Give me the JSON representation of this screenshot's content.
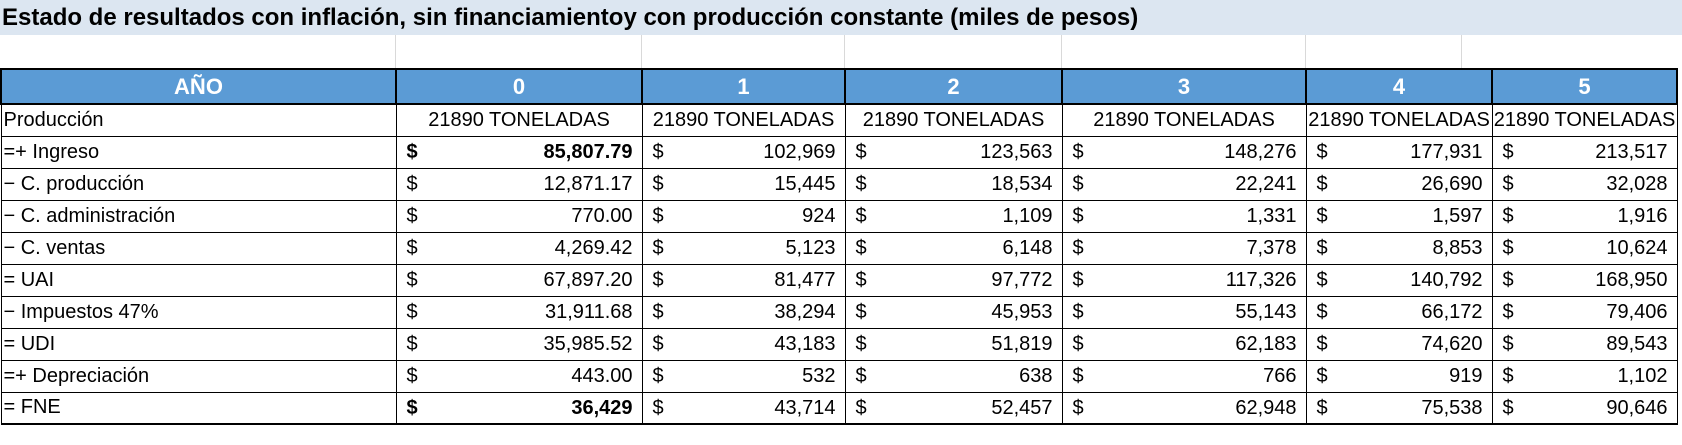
{
  "title": "Estado de resultados con inflación, sin financiamientoy con producción constante (miles de pesos)",
  "header": [
    "AÑO",
    "0",
    "1",
    "2",
    "3",
    "4",
    "5"
  ],
  "production": {
    "label": "Producción",
    "values": [
      "21890 TONELADAS",
      "21890 TONELADAS",
      "21890 TONELADAS",
      "21890 TONELADAS",
      "21890 TONELADAS",
      "21890 TONELADAS"
    ]
  },
  "currency_symbol": "$",
  "rows": [
    {
      "label": "=+ Ingreso",
      "values": [
        "85,807.79",
        "102,969",
        "123,563",
        "148,276",
        "177,931",
        "213,517"
      ],
      "bold_first": true
    },
    {
      "label": "− C. producción",
      "values": [
        "12,871.17",
        "15,445",
        "18,534",
        "22,241",
        "26,690",
        "32,028"
      ],
      "bold_first": false
    },
    {
      "label": "− C. administración",
      "values": [
        "770.00",
        "924",
        "1,109",
        "1,331",
        "1,597",
        "1,916"
      ],
      "bold_first": false
    },
    {
      "label": "− C. ventas",
      "values": [
        "4,269.42",
        "5,123",
        "6,148",
        "7,378",
        "8,853",
        "10,624"
      ],
      "bold_first": false
    },
    {
      "label": "= UAI",
      "values": [
        "67,897.20",
        "81,477",
        "97,772",
        "117,326",
        "140,792",
        "168,950"
      ],
      "bold_first": false
    },
    {
      "label": "− Impuestos 47%",
      "values": [
        "31,911.68",
        "38,294",
        "45,953",
        "55,143",
        "66,172",
        "79,406"
      ],
      "bold_first": false
    },
    {
      "label": "= UDI",
      "values": [
        "35,985.52",
        "43,183",
        "51,819",
        "62,183",
        "74,620",
        "89,543"
      ],
      "bold_first": false
    },
    {
      "label": "=+ Depreciación",
      "values": [
        "443.00",
        "532",
        "638",
        "766",
        "919",
        "1,102"
      ],
      "bold_first": false
    },
    {
      "label": "= FNE",
      "values": [
        "36,429",
        "43,714",
        "52,457",
        "62,948",
        "75,538",
        "90,646"
      ],
      "bold_first": true
    }
  ],
  "colors": {
    "title_background": "#dce6f1",
    "header_background": "#5b9bd5",
    "header_text": "#ffffff"
  }
}
